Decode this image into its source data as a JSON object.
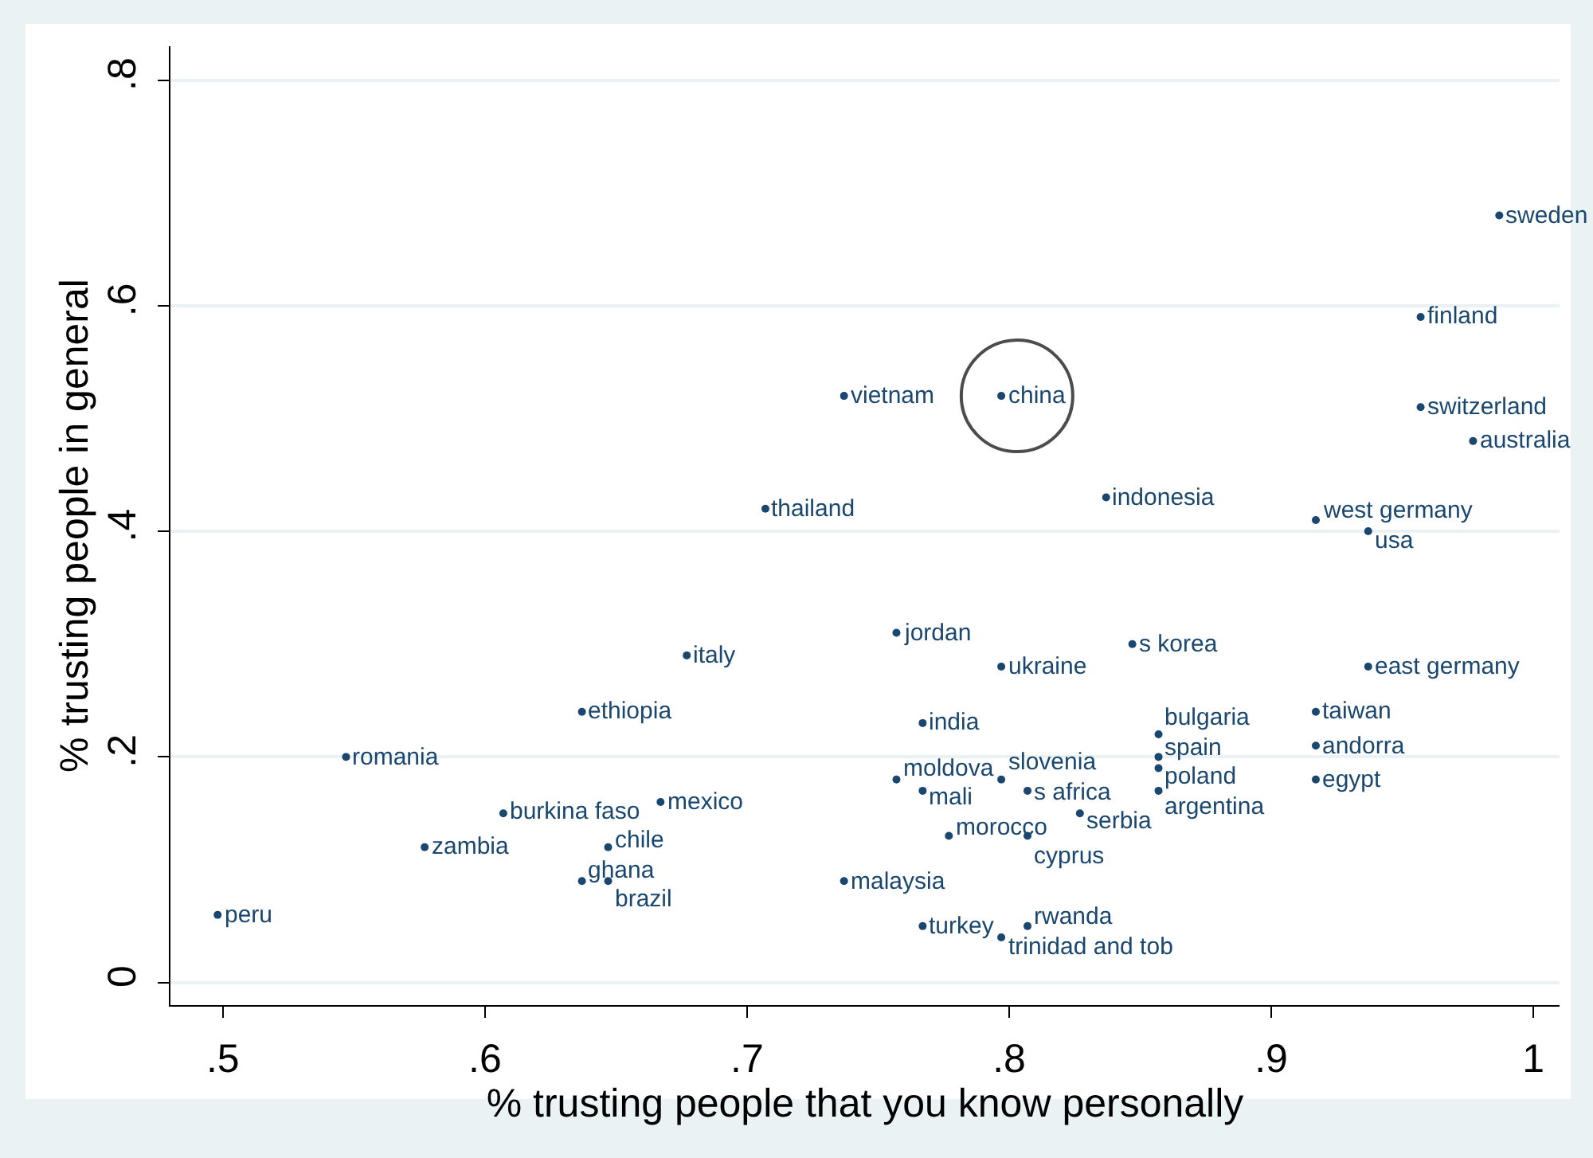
{
  "chart_data": {
    "type": "scatter",
    "xlabel": "% trusting people that you know personally",
    "ylabel": "% trusting people in general",
    "xlim": [
      0.48,
      1.01
    ],
    "ylim": [
      -0.02,
      0.83
    ],
    "xticks": [
      {
        "value": 0.5,
        "label": ".5"
      },
      {
        "value": 0.6,
        "label": ".6"
      },
      {
        "value": 0.7,
        "label": ".7"
      },
      {
        "value": 0.8,
        "label": ".8"
      },
      {
        "value": 0.9,
        "label": ".9"
      },
      1
    ],
    "yticks": [
      0,
      {
        "value": 0.2,
        "label": ".2"
      },
      {
        "value": 0.4,
        "label": ".4"
      },
      {
        "value": 0.6,
        "label": ".6"
      },
      {
        "value": 0.8,
        "label": ".8"
      }
    ],
    "grid": "y",
    "marker": "circle",
    "series": [
      {
        "color": "#1a476f",
        "x": [
          0.987,
          0.957,
          0.737,
          0.797,
          0.957,
          0.977,
          0.837,
          0.707,
          0.917,
          0.937,
          0.757,
          0.847,
          0.677,
          0.797,
          0.937,
          0.637,
          0.917,
          0.767,
          0.857,
          0.917,
          0.547,
          0.857,
          0.857,
          0.757,
          0.797,
          0.917,
          0.767,
          0.807,
          0.857,
          0.667,
          0.607,
          0.827,
          0.777,
          0.807,
          0.577,
          0.647,
          0.637,
          0.647,
          0.737,
          0.498,
          0.767,
          0.807,
          0.797
        ],
        "values": [
          0.68,
          0.59,
          0.52,
          0.52,
          0.51,
          0.48,
          0.43,
          0.42,
          0.41,
          0.4,
          0.31,
          0.3,
          0.29,
          0.28,
          0.28,
          0.24,
          0.24,
          0.23,
          0.22,
          0.21,
          0.2,
          0.2,
          0.19,
          0.18,
          0.18,
          0.18,
          0.17,
          0.17,
          0.17,
          0.16,
          0.15,
          0.15,
          0.13,
          0.13,
          0.12,
          0.12,
          0.09,
          0.09,
          0.09,
          0.06,
          0.05,
          0.05,
          0.04
        ],
        "value_labels": [
          "sweden",
          "finland",
          "vietnam",
          "china",
          "switzerland",
          "australia",
          "indonesia",
          "thailand",
          "west germany",
          "usa",
          "jordan",
          "s korea",
          "italy",
          "ukraine",
          "east germany",
          "ethiopia",
          "taiwan",
          "india",
          "bulgaria",
          "andorra",
          "romania",
          "spain",
          "poland",
          "moldova",
          "slovenia",
          "egypt",
          "mali",
          "s africa",
          "argentina",
          "mexico",
          "burkina faso",
          "serbia",
          "morocco",
          "cyprus",
          "zambia",
          "chile",
          "ghana",
          "brazil",
          "malaysia",
          "peru",
          "turkey",
          "rwanda",
          "trinidad and tob"
        ]
      },
      {
        "type": "bubble",
        "color": "#000000",
        "x": [
          0.803
        ],
        "values": [
          0.52
        ],
        "sizes": [
          1
        ]
      }
    ]
  }
}
